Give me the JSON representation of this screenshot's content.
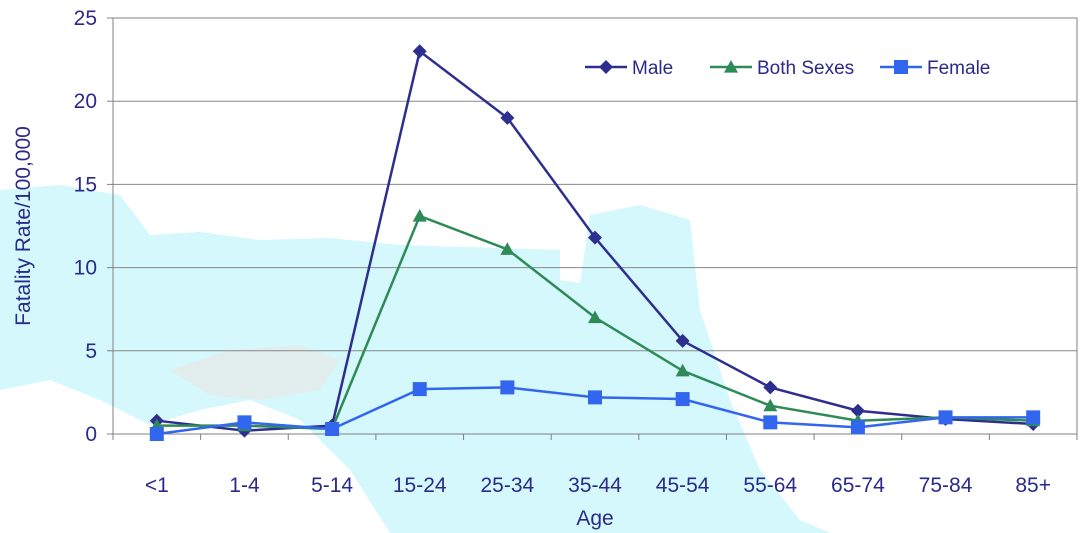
{
  "chart_data": {
    "type": "line",
    "title": "",
    "xlabel": "Age",
    "ylabel": "Fatality Rate/100,000",
    "categories": [
      "<1",
      "1-4",
      "5-14",
      "15-24",
      "25-34",
      "35-44",
      "45-54",
      "55-64",
      "65-74",
      "75-84",
      "85+"
    ],
    "ylim": [
      0,
      25
    ],
    "yticks": [
      0,
      5,
      10,
      15,
      20,
      25
    ],
    "grid": "horizontal",
    "legend_position": "top-right",
    "series": [
      {
        "name": "Male",
        "marker": "diamond",
        "color": "#2e2e8f",
        "values": [
          0.8,
          0.2,
          0.5,
          23.0,
          19.0,
          11.8,
          5.6,
          2.8,
          1.4,
          0.9,
          0.6
        ]
      },
      {
        "name": "Both Sexes",
        "marker": "triangle",
        "color": "#2e8b57",
        "values": [
          0.5,
          0.5,
          0.3,
          13.1,
          11.1,
          7.0,
          3.8,
          1.7,
          0.8,
          1.0,
          0.8
        ]
      },
      {
        "name": "Female",
        "marker": "square",
        "color": "#3366ee",
        "values": [
          0.0,
          0.7,
          0.3,
          2.7,
          2.8,
          2.2,
          2.1,
          0.7,
          0.4,
          1.0,
          1.0
        ]
      }
    ]
  }
}
